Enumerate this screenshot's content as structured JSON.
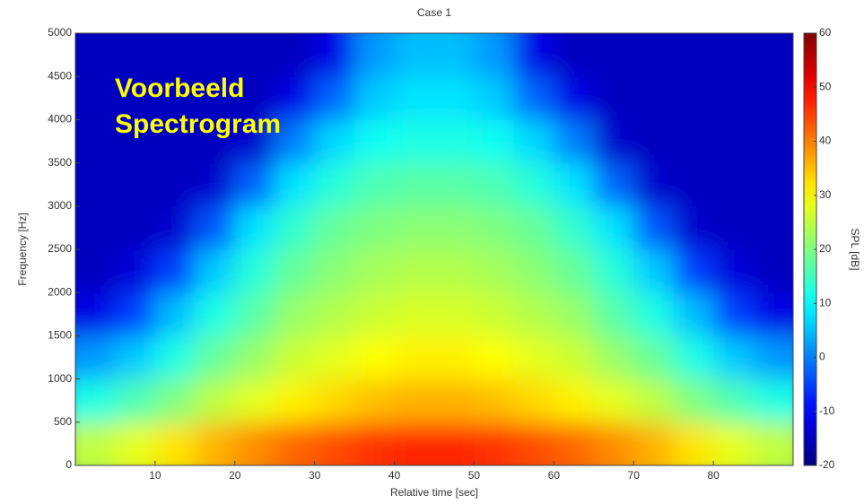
{
  "chart_data": {
    "type": "heatmap",
    "title": "Case 1",
    "xlabel": "Relative time [sec]",
    "ylabel": "Frequency [Hz]",
    "colorbar_label": "SPL [dB]",
    "colormap": "jet",
    "annotation": [
      "Voorbeeld",
      "Spectrogram"
    ],
    "annotation_color": "#ffff00",
    "x": [
      2.5,
      7.5,
      12.5,
      17.5,
      22.5,
      27.5,
      32.5,
      37.5,
      42.5,
      47.5,
      52.5,
      57.5,
      62.5,
      67.5,
      72.5,
      77.5,
      82.5,
      87.5
    ],
    "y": [
      250,
      750,
      1250,
      1750,
      2250,
      2750,
      3250,
      3750,
      4250,
      4750
    ],
    "values": [
      [
        25,
        28,
        32,
        36,
        39,
        42,
        44,
        46,
        47,
        47,
        46,
        44,
        42,
        39,
        36,
        32,
        28,
        25
      ],
      [
        12,
        16,
        20,
        25,
        28,
        31,
        33,
        35,
        36,
        36,
        35,
        33,
        31,
        28,
        25,
        20,
        16,
        12
      ],
      [
        2,
        6,
        12,
        18,
        22,
        26,
        28,
        30,
        31,
        31,
        30,
        28,
        26,
        22,
        18,
        12,
        6,
        2
      ],
      [
        -12,
        -5,
        5,
        12,
        17,
        22,
        24,
        26,
        27,
        27,
        26,
        24,
        22,
        17,
        12,
        5,
        -5,
        -12
      ],
      [
        -15,
        -13,
        -5,
        6,
        13,
        18,
        21,
        23,
        24,
        24,
        23,
        21,
        18,
        13,
        6,
        -5,
        -13,
        -15
      ],
      [
        -15,
        -15,
        -14,
        -3,
        8,
        14,
        18,
        20,
        21,
        21,
        20,
        18,
        14,
        8,
        -3,
        -14,
        -15,
        -15
      ],
      [
        -15,
        -15,
        -15,
        -14,
        -2,
        8,
        13,
        16,
        17,
        17,
        16,
        13,
        8,
        -2,
        -14,
        -15,
        -15,
        -15
      ],
      [
        -15,
        -15,
        -15,
        -15,
        -14,
        0,
        7,
        11,
        12,
        12,
        11,
        7,
        0,
        -14,
        -15,
        -15,
        -15,
        -15
      ],
      [
        -15,
        -15,
        -15,
        -15,
        -15,
        -12,
        -2,
        6,
        8,
        8,
        6,
        -2,
        -12,
        -15,
        -15,
        -15,
        -15,
        -15
      ],
      [
        -15,
        -15,
        -15,
        -15,
        -15,
        -15,
        -12,
        2,
        5,
        5,
        2,
        -12,
        -15,
        -15,
        -15,
        -15,
        -15,
        -15
      ]
    ],
    "xlim": [
      0,
      90
    ],
    "xticks": [
      10,
      20,
      30,
      40,
      50,
      60,
      70,
      80
    ],
    "ylim": [
      0,
      5000
    ],
    "yticks": [
      0,
      500,
      1000,
      1500,
      2000,
      2500,
      3000,
      3500,
      4000,
      4500,
      5000
    ],
    "clim": [
      -20,
      60
    ],
    "cticks": [
      -20,
      -10,
      0,
      10,
      20,
      30,
      40,
      50,
      60
    ]
  }
}
